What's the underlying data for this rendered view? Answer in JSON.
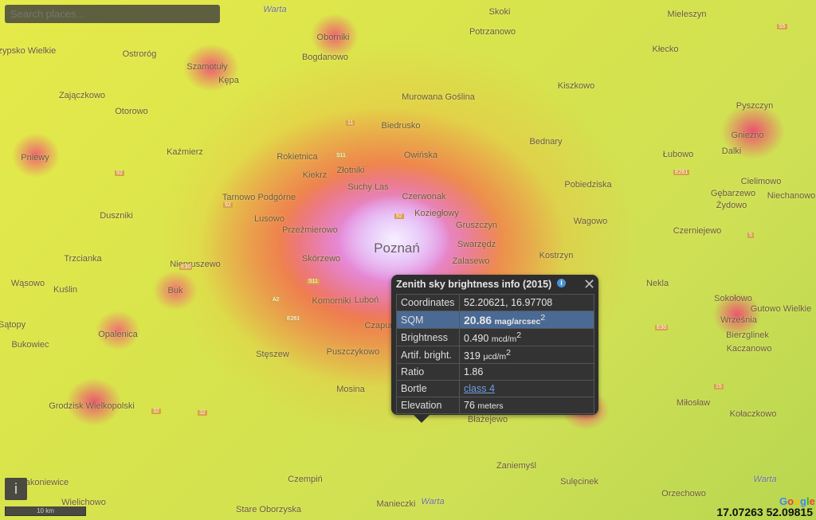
{
  "search": {
    "placeholder": "Search places..."
  },
  "map": {
    "places": [
      "Warta",
      "Oborniki",
      "Skoki",
      "Mieleszyn",
      "Chrzypsko Wielkie",
      "Ostroróg",
      "Szamotuły",
      "Kępa",
      "Bogdanowo",
      "Potrzanowo",
      "Kłecko",
      "Zajączkowo",
      "Otorowo",
      "Murowana Goślina",
      "Kiszkowo",
      "Pyszczyn",
      "Biedrusko",
      "Gniezno",
      "Bednary",
      "Łubowo",
      "Dalki",
      "Pniewy",
      "Kaźmierz",
      "Rokietnica",
      "Złotniki",
      "Owińska",
      "Kiekrz",
      "Suchy Las",
      "Czerwonak",
      "Pobiedziska",
      "Cielimowo",
      "Tarnowo Podgórne",
      "Koziegłowy",
      "Gruszczyn",
      "Gębarzewo",
      "Niechanowo",
      "Żydowo",
      "Duszniki",
      "Lusowo",
      "Wagowo",
      "Przeźmierowo",
      "Poznań",
      "Swarzędz",
      "Czerniejewo",
      "Trzcianka",
      "Niepruszewo",
      "Skórzewo",
      "Zalasewo",
      "Kostrzyn",
      "Wąsowo",
      "Kuślin",
      "Buk",
      "Komorniki",
      "Luboń",
      "Nekla",
      "Sokołowo",
      "Gutowo Wielkie",
      "Sątopy",
      "Opalenica",
      "Czapury",
      "Września",
      "Bierzglinek",
      "Kaczanowo",
      "Bukowiec",
      "Stęszew",
      "Puszczykowo",
      "Mosina",
      "Grodzisk Wielkopolski",
      "Błażejewo",
      "Miłosław",
      "Kołaczkowo",
      "Zaniemyśl",
      "Sulęcinek",
      "Czempiń",
      "Rakoniewice",
      "Wielichowo",
      "Stare Oborzyska",
      "Manieczki",
      "Warta",
      "Orzechowo",
      "Warta"
    ],
    "roads": [
      "11",
      "S11",
      "92",
      "92",
      "E30",
      "S11",
      "A2",
      "E261",
      "32",
      "32",
      "E261",
      "5",
      "15",
      "E30",
      "S5",
      "92"
    ]
  },
  "popup": {
    "title": "Zenith sky brightness info (2015)",
    "info_icon": "info-icon",
    "close_icon": "close-icon",
    "rows": [
      {
        "label": "Coordinates",
        "value": "52.20621, 16.97708",
        "unit": ""
      },
      {
        "label": "SQM",
        "value": "20.86",
        "unit": "mag/arcsec",
        "sup": "2"
      },
      {
        "label": "Brightness",
        "value": "0.490",
        "unit": "mcd/m",
        "sup": "2"
      },
      {
        "label": "Artif. bright.",
        "value": "319",
        "unit": "μcd/m",
        "sup": "2"
      },
      {
        "label": "Ratio",
        "value": "1.86",
        "unit": ""
      },
      {
        "label": "Bortle",
        "value": "class 4",
        "unit": ""
      },
      {
        "label": "Elevation",
        "value": "76",
        "unit": "meters"
      }
    ],
    "highlight_color": "#4a6a94"
  },
  "controls": {
    "info_label": "i",
    "scale": "10 km",
    "google": "Google",
    "cursor_coords": "17.07263 52.09815"
  }
}
